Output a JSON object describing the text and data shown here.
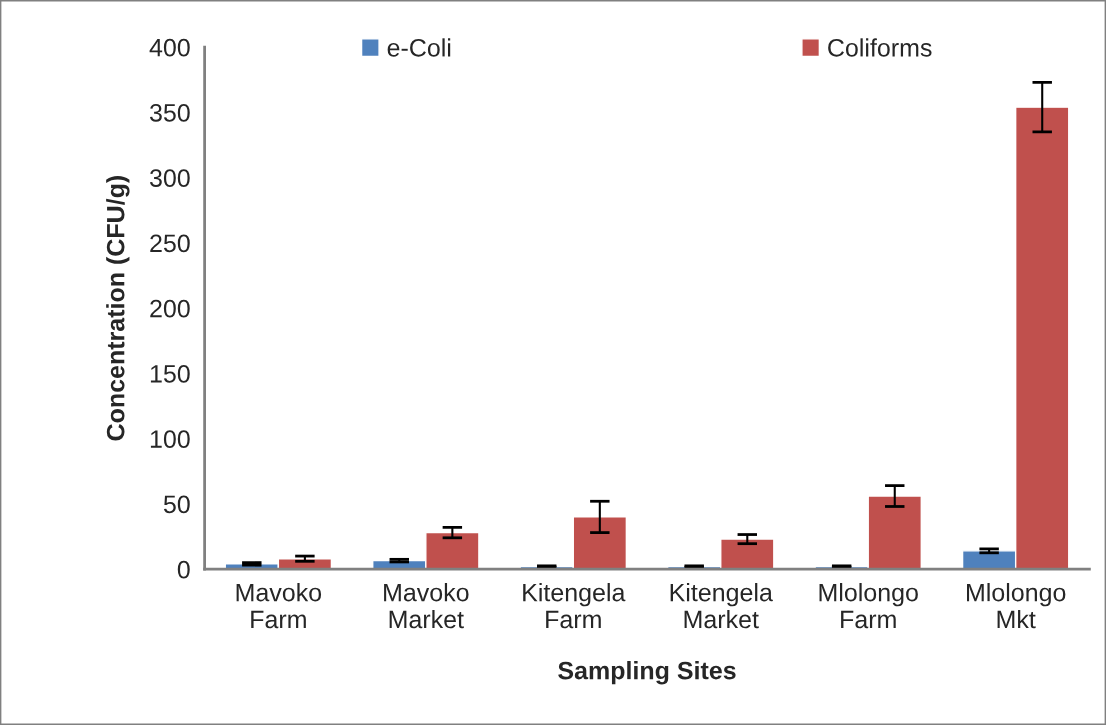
{
  "chart_data": {
    "type": "bar",
    "xlabel": "Sampling Sites",
    "ylabel": "Concentration (CFU/g)",
    "categories": [
      "Mavoko\nFarm",
      "Mavoko\nMarket",
      "Kitengela\nFarm",
      "Kitengela\nMarket",
      "Mlolongo\nFarm",
      "Mlolongo\nMkt"
    ],
    "series": [
      {
        "name": "e-Coli",
        "color": "#4f81bd",
        "values": [
          4,
          6.5,
          2,
          2,
          2,
          14
        ],
        "errors": [
          1,
          1,
          0.5,
          0.5,
          0.5,
          1.5
        ]
      },
      {
        "name": "Coliforms",
        "color": "#c0504d",
        "values": [
          8,
          28,
          40,
          23,
          56,
          354
        ],
        "errors": [
          2,
          4,
          12,
          3.5,
          8,
          19
        ]
      }
    ],
    "ylim": [
      0,
      400
    ],
    "yticks": [
      0,
      50,
      100,
      150,
      200,
      250,
      300,
      350,
      400
    ],
    "grid": false,
    "legend": "top"
  }
}
